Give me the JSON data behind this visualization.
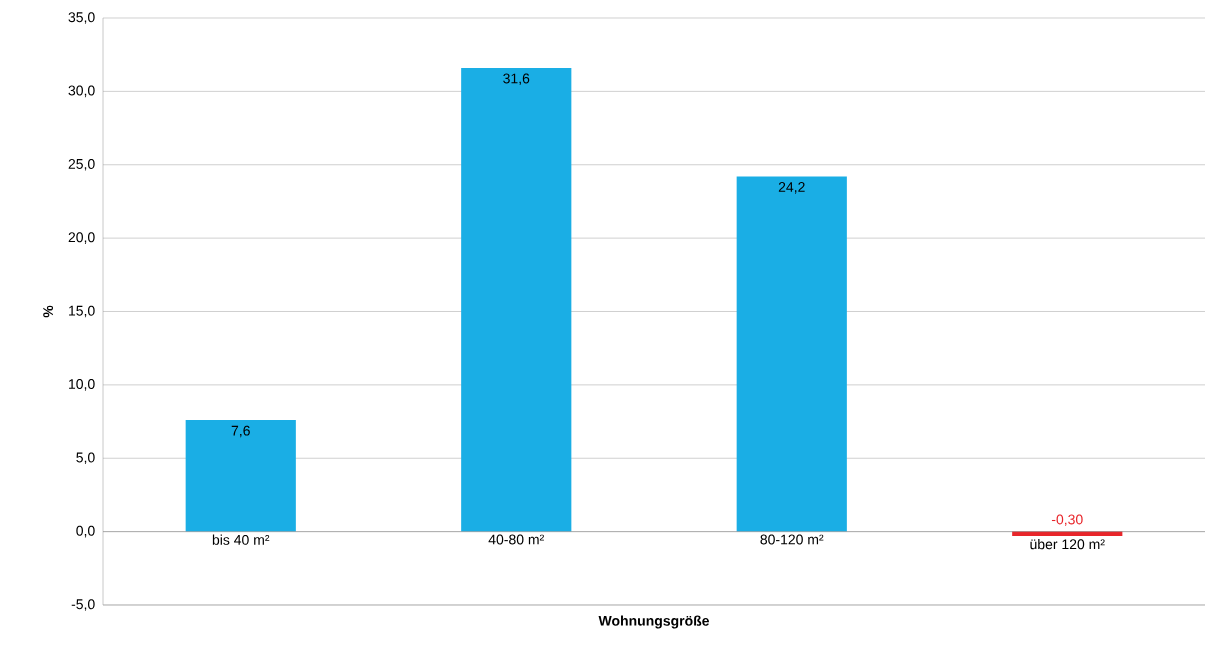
{
  "chart_data": {
    "type": "bar",
    "xlabel": "Wohnungsgröße",
    "ylabel": "%",
    "categories": [
      "bis 40 m²",
      "40-80 m²",
      "80-120 m²",
      "über 120 m²"
    ],
    "values": [
      7.6,
      31.6,
      24.2,
      -0.3
    ],
    "value_labels": [
      "7,6",
      "31,6",
      "24,2",
      "-0,30"
    ],
    "colors": [
      "#1aaee5",
      "#1aaee5",
      "#1aaee5",
      "#e8252a"
    ],
    "ylim": [
      -5,
      35
    ],
    "yticks": [
      {
        "value": -5,
        "label": "-5,0"
      },
      {
        "value": 0,
        "label": "0,0"
      },
      {
        "value": 5,
        "label": "5,0"
      },
      {
        "value": 10,
        "label": "10,0"
      },
      {
        "value": 15,
        "label": "15,0"
      },
      {
        "value": 20,
        "label": "20,0"
      },
      {
        "value": 25,
        "label": "25,0"
      },
      {
        "value": 30,
        "label": "30,0"
      },
      {
        "value": 35,
        "label": "35,0"
      }
    ],
    "grid": "y"
  }
}
